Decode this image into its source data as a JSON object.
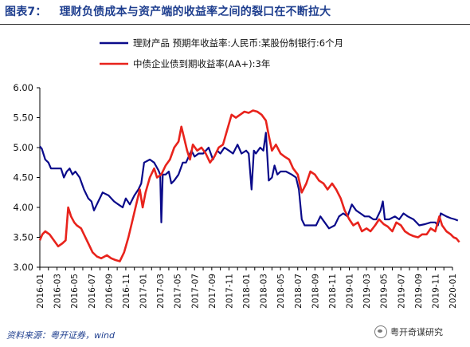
{
  "title": {
    "prefix": "图表7：",
    "text": "理财负债成本与资产端的收益率之间的裂口在不断拉大"
  },
  "source": "资料来源：粤开证券，wind",
  "watermark": "粤开奇谋研究",
  "colors": {
    "series_wmp": "#0a0a8a",
    "series_bond": "#e8231c",
    "title": "#1f3f8f",
    "axis": "#000000"
  },
  "chart_data": {
    "type": "line",
    "ylim": [
      3.0,
      6.0
    ],
    "yticks": [
      "3.00",
      "3.50",
      "4.00",
      "4.50",
      "5.00",
      "5.50",
      "6.00"
    ],
    "xticks": [
      "2016-01",
      "2016-03",
      "2016-05",
      "2016-07",
      "2016-09",
      "2016-11",
      "2017-01",
      "2017-03",
      "2017-05",
      "2017-07",
      "2017-09",
      "2017-11",
      "2018-01",
      "2018-03",
      "2018-05",
      "2018-07",
      "2018-09",
      "2018-11",
      "2019-01",
      "2019-03",
      "2019-05",
      "2019-07",
      "2019-09",
      "2019-11",
      "2020-01"
    ],
    "legend_position": "top-center",
    "grid": false,
    "series": [
      {
        "name": "理财产品 预期年收益率:人民币:某股份制银行:6个月",
        "color": "#0a0a8a",
        "points": [
          [
            "2016-01-01",
            5.02
          ],
          [
            "2016-01-08",
            4.98
          ],
          [
            "2016-01-20",
            4.8
          ],
          [
            "2016-02-01",
            4.75
          ],
          [
            "2016-02-10",
            4.65
          ],
          [
            "2016-03-01",
            4.65
          ],
          [
            "2016-03-15",
            4.65
          ],
          [
            "2016-03-25",
            4.5
          ],
          [
            "2016-04-05",
            4.6
          ],
          [
            "2016-04-15",
            4.65
          ],
          [
            "2016-04-25",
            4.55
          ],
          [
            "2016-05-05",
            4.6
          ],
          [
            "2016-05-20",
            4.5
          ],
          [
            "2016-06-05",
            4.3
          ],
          [
            "2016-06-20",
            4.15
          ],
          [
            "2016-07-01",
            4.1
          ],
          [
            "2016-07-10",
            3.95
          ],
          [
            "2016-07-25",
            4.1
          ],
          [
            "2016-08-10",
            4.25
          ],
          [
            "2016-09-01",
            4.2
          ],
          [
            "2016-09-20",
            4.1
          ],
          [
            "2016-10-05",
            4.05
          ],
          [
            "2016-10-20",
            4.0
          ],
          [
            "2016-11-01",
            4.15
          ],
          [
            "2016-11-15",
            4.05
          ],
          [
            "2016-12-01",
            4.2
          ],
          [
            "2016-12-15",
            4.3
          ],
          [
            "2016-12-25",
            4.4
          ],
          [
            "2017-01-05",
            4.75
          ],
          [
            "2017-01-25",
            4.8
          ],
          [
            "2017-02-10",
            4.75
          ],
          [
            "2017-02-25",
            4.62
          ],
          [
            "2017-03-01",
            4.55
          ],
          [
            "2017-03-05",
            3.75
          ],
          [
            "2017-03-10",
            4.55
          ],
          [
            "2017-03-20",
            4.55
          ],
          [
            "2017-04-01",
            4.6
          ],
          [
            "2017-04-10",
            4.4
          ],
          [
            "2017-04-20",
            4.45
          ],
          [
            "2017-05-05",
            4.55
          ],
          [
            "2017-05-20",
            4.75
          ],
          [
            "2017-06-01",
            4.75
          ],
          [
            "2017-06-20",
            4.95
          ],
          [
            "2017-07-01",
            4.85
          ],
          [
            "2017-07-15",
            4.9
          ],
          [
            "2017-08-01",
            4.9
          ],
          [
            "2017-08-20",
            5.0
          ],
          [
            "2017-09-05",
            4.8
          ],
          [
            "2017-09-20",
            4.95
          ],
          [
            "2017-10-01",
            4.9
          ],
          [
            "2017-10-15",
            5.0
          ],
          [
            "2017-11-01",
            4.95
          ],
          [
            "2017-11-15",
            4.9
          ],
          [
            "2017-12-01",
            5.05
          ],
          [
            "2017-12-15",
            4.9
          ],
          [
            "2018-01-01",
            4.95
          ],
          [
            "2018-01-10",
            4.9
          ],
          [
            "2018-01-20",
            4.3
          ],
          [
            "2018-01-28",
            4.95
          ],
          [
            "2018-02-05",
            4.9
          ],
          [
            "2018-02-20",
            5.0
          ],
          [
            "2018-03-01",
            4.95
          ],
          [
            "2018-03-10",
            5.25
          ],
          [
            "2018-03-20",
            4.45
          ],
          [
            "2018-04-01",
            4.5
          ],
          [
            "2018-04-10",
            4.7
          ],
          [
            "2018-04-20",
            4.55
          ],
          [
            "2018-05-01",
            4.6
          ],
          [
            "2018-05-20",
            4.6
          ],
          [
            "2018-06-10",
            4.55
          ],
          [
            "2018-06-25",
            4.5
          ],
          [
            "2018-07-05",
            4.3
          ],
          [
            "2018-07-15",
            3.8
          ],
          [
            "2018-07-25",
            3.7
          ],
          [
            "2018-08-15",
            3.7
          ],
          [
            "2018-09-05",
            3.7
          ],
          [
            "2018-09-20",
            3.85
          ],
          [
            "2018-10-05",
            3.75
          ],
          [
            "2018-10-20",
            3.65
          ],
          [
            "2018-11-10",
            3.7
          ],
          [
            "2018-11-25",
            3.85
          ],
          [
            "2018-12-10",
            3.9
          ],
          [
            "2018-12-25",
            3.85
          ],
          [
            "2019-01-10",
            4.05
          ],
          [
            "2019-01-25",
            3.95
          ],
          [
            "2019-02-10",
            3.9
          ],
          [
            "2019-02-25",
            3.85
          ],
          [
            "2019-03-10",
            3.85
          ],
          [
            "2019-03-25",
            3.8
          ],
          [
            "2019-04-05",
            3.8
          ],
          [
            "2019-04-20",
            3.95
          ],
          [
            "2019-04-28",
            4.1
          ],
          [
            "2019-05-05",
            3.8
          ],
          [
            "2019-05-20",
            3.8
          ],
          [
            "2019-06-10",
            3.85
          ],
          [
            "2019-06-25",
            3.8
          ],
          [
            "2019-07-10",
            3.9
          ],
          [
            "2019-07-25",
            3.85
          ],
          [
            "2019-08-15",
            3.8
          ],
          [
            "2019-09-05",
            3.7
          ],
          [
            "2019-09-25",
            3.72
          ],
          [
            "2019-10-15",
            3.75
          ],
          [
            "2019-11-01",
            3.75
          ],
          [
            "2019-11-10",
            3.7
          ],
          [
            "2019-11-20",
            3.9
          ],
          [
            "2019-12-10",
            3.85
          ],
          [
            "2019-12-25",
            3.82
          ],
          [
            "2020-01-10",
            3.8
          ],
          [
            "2020-01-20",
            3.78
          ]
        ]
      },
      {
        "name": "中债企业债到期收益率(AA+):3年",
        "color": "#e8231c",
        "points": [
          [
            "2016-01-01",
            3.45
          ],
          [
            "2016-01-10",
            3.55
          ],
          [
            "2016-01-20",
            3.6
          ],
          [
            "2016-02-05",
            3.55
          ],
          [
            "2016-02-20",
            3.45
          ],
          [
            "2016-03-05",
            3.35
          ],
          [
            "2016-03-20",
            3.4
          ],
          [
            "2016-04-01",
            3.45
          ],
          [
            "2016-04-10",
            4.0
          ],
          [
            "2016-04-20",
            3.85
          ],
          [
            "2016-05-01",
            3.75
          ],
          [
            "2016-05-10",
            3.7
          ],
          [
            "2016-05-25",
            3.65
          ],
          [
            "2016-06-05",
            3.55
          ],
          [
            "2016-06-20",
            3.4
          ],
          [
            "2016-07-05",
            3.25
          ],
          [
            "2016-07-20",
            3.18
          ],
          [
            "2016-08-05",
            3.15
          ],
          [
            "2016-08-25",
            3.2
          ],
          [
            "2016-09-10",
            3.15
          ],
          [
            "2016-09-25",
            3.12
          ],
          [
            "2016-10-10",
            3.1
          ],
          [
            "2016-10-25",
            3.25
          ],
          [
            "2016-11-10",
            3.5
          ],
          [
            "2016-11-25",
            3.8
          ],
          [
            "2016-12-10",
            4.1
          ],
          [
            "2016-12-20",
            4.3
          ],
          [
            "2016-12-30",
            4.0
          ],
          [
            "2017-01-10",
            4.25
          ],
          [
            "2017-01-25",
            4.5
          ],
          [
            "2017-02-10",
            4.65
          ],
          [
            "2017-02-20",
            4.5
          ],
          [
            "2017-03-05",
            4.55
          ],
          [
            "2017-03-20",
            4.7
          ],
          [
            "2017-04-05",
            4.8
          ],
          [
            "2017-04-20",
            5.0
          ],
          [
            "2017-05-05",
            5.1
          ],
          [
            "2017-05-15",
            5.35
          ],
          [
            "2017-05-25",
            5.15
          ],
          [
            "2017-06-05",
            4.95
          ],
          [
            "2017-06-15",
            4.8
          ],
          [
            "2017-06-25",
            5.05
          ],
          [
            "2017-07-10",
            4.95
          ],
          [
            "2017-07-25",
            5.0
          ],
          [
            "2017-08-10",
            4.9
          ],
          [
            "2017-08-25",
            4.75
          ],
          [
            "2017-09-10",
            4.85
          ],
          [
            "2017-09-25",
            5.0
          ],
          [
            "2017-10-10",
            5.05
          ],
          [
            "2017-10-25",
            5.3
          ],
          [
            "2017-11-10",
            5.55
          ],
          [
            "2017-11-25",
            5.5
          ],
          [
            "2017-12-10",
            5.55
          ],
          [
            "2017-12-25",
            5.6
          ],
          [
            "2018-01-10",
            5.58
          ],
          [
            "2018-01-25",
            5.62
          ],
          [
            "2018-02-10",
            5.6
          ],
          [
            "2018-02-25",
            5.55
          ],
          [
            "2018-03-10",
            5.45
          ],
          [
            "2018-03-20",
            5.2
          ],
          [
            "2018-04-01",
            4.95
          ],
          [
            "2018-04-15",
            5.05
          ],
          [
            "2018-05-01",
            4.9
          ],
          [
            "2018-05-15",
            4.85
          ],
          [
            "2018-06-01",
            4.8
          ],
          [
            "2018-06-15",
            4.65
          ],
          [
            "2018-07-01",
            4.55
          ],
          [
            "2018-07-15",
            4.25
          ],
          [
            "2018-08-01",
            4.4
          ],
          [
            "2018-08-15",
            4.6
          ],
          [
            "2018-09-01",
            4.55
          ],
          [
            "2018-09-15",
            4.45
          ],
          [
            "2018-10-01",
            4.4
          ],
          [
            "2018-10-15",
            4.3
          ],
          [
            "2018-11-01",
            4.4
          ],
          [
            "2018-11-15",
            4.3
          ],
          [
            "2018-12-01",
            4.15
          ],
          [
            "2018-12-15",
            3.95
          ],
          [
            "2019-01-01",
            3.8
          ],
          [
            "2019-01-15",
            3.7
          ],
          [
            "2019-02-01",
            3.75
          ],
          [
            "2019-02-15",
            3.6
          ],
          [
            "2019-03-01",
            3.65
          ],
          [
            "2019-03-15",
            3.6
          ],
          [
            "2019-04-01",
            3.7
          ],
          [
            "2019-04-15",
            3.8
          ],
          [
            "2019-05-01",
            3.72
          ],
          [
            "2019-05-15",
            3.68
          ],
          [
            "2019-06-01",
            3.6
          ],
          [
            "2019-06-15",
            3.75
          ],
          [
            "2019-07-01",
            3.7
          ],
          [
            "2019-07-15",
            3.6
          ],
          [
            "2019-08-01",
            3.55
          ],
          [
            "2019-08-15",
            3.52
          ],
          [
            "2019-09-01",
            3.5
          ],
          [
            "2019-09-15",
            3.55
          ],
          [
            "2019-10-01",
            3.55
          ],
          [
            "2019-10-15",
            3.65
          ],
          [
            "2019-11-01",
            3.6
          ],
          [
            "2019-11-15",
            3.85
          ],
          [
            "2019-11-25",
            3.7
          ],
          [
            "2019-12-10",
            3.6
          ],
          [
            "2019-12-25",
            3.55
          ],
          [
            "2020-01-05",
            3.5
          ],
          [
            "2020-01-15",
            3.48
          ],
          [
            "2020-01-25",
            3.42
          ]
        ]
      }
    ]
  }
}
